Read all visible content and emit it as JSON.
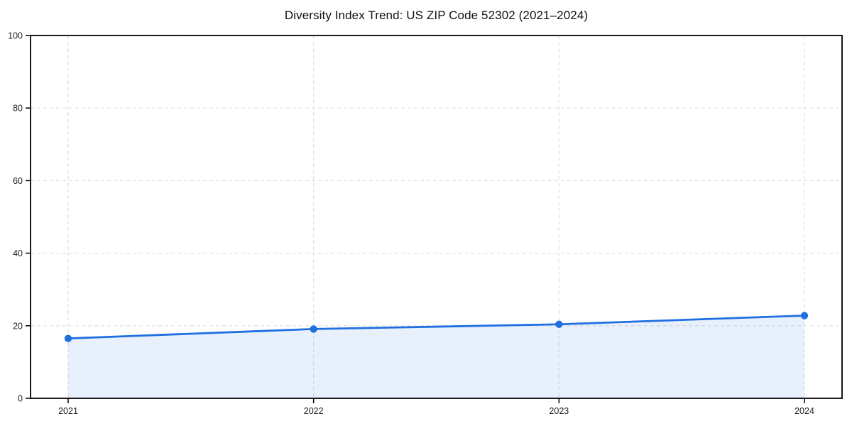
{
  "page": {
    "background_color": "#ffffff"
  },
  "chart_data": {
    "type": "line",
    "title": "Diversity Index Trend: US ZIP Code 52302 (2021–2024)",
    "categories": [
      "2021",
      "2022",
      "2023",
      "2024"
    ],
    "series": [
      {
        "name": "Diversity Index",
        "values": [
          16.5,
          19.1,
          20.4,
          22.8
        ]
      }
    ],
    "xlabel": "",
    "ylabel": "",
    "ylim": [
      0,
      100
    ],
    "y_ticks": [
      0,
      20,
      40,
      60,
      80,
      100
    ],
    "grid": "dashed horizontal and vertical gridlines",
    "legend_position": "none",
    "line_color": "#1f6fe0",
    "marker_color": "#1f6fe0",
    "fill_color": "rgba(31,111,224,0.10)",
    "gridline_color": "#e0e0e0",
    "frame_color": "#000000",
    "tick_label_color": "#222222"
  }
}
